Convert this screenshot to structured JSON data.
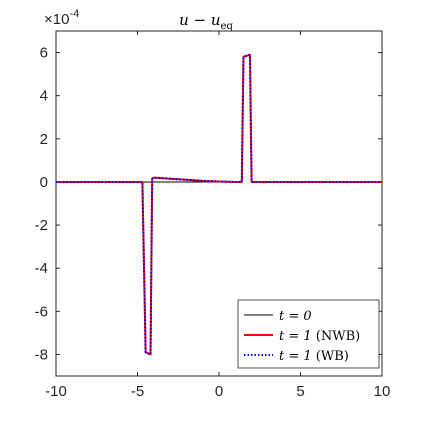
{
  "chart_data": {
    "type": "line",
    "title": "u − u_eq",
    "title_main": "u − u",
    "title_sub": "eq",
    "y_scale_label": "×10",
    "y_scale_exponent": "-4",
    "xlabel": "",
    "ylabel": "",
    "xlim": [
      -10,
      10
    ],
    "ylim": [
      -9,
      7
    ],
    "x_ticks": [
      -10,
      -5,
      0,
      5,
      10
    ],
    "x_tick_labels": [
      "-10",
      "-5",
      "0",
      "5",
      "10"
    ],
    "y_ticks": [
      -8,
      -6,
      -4,
      -2,
      0,
      2,
      4,
      6
    ],
    "y_tick_labels": [
      "-8",
      "-6",
      "-4",
      "-2",
      "0",
      "2",
      "4",
      "6"
    ],
    "grid": false,
    "legend_position": "bottom-right",
    "series": [
      {
        "name": "t = 0",
        "label_math": "t = 0",
        "color": "#000000",
        "style": "solid",
        "x": [
          -10,
          1.4,
          1.5,
          1.9,
          2.0,
          10
        ],
        "y": [
          0,
          0,
          5.8,
          5.9,
          0,
          0
        ]
      },
      {
        "name": "t = 1 (NWB)",
        "label_math": "t = 1",
        "label_suffix": " (NWB)",
        "color": "#ff0000",
        "style": "solid",
        "x": [
          -10,
          -4.7,
          -4.5,
          -4.2,
          -4.1,
          -4.0,
          -3.6,
          -3.0,
          -2.0,
          -1.0,
          0.0,
          1.0,
          1.4,
          1.5,
          1.9,
          2.0,
          2.5,
          10
        ],
        "y": [
          0,
          0,
          -7.9,
          -8.0,
          0.15,
          0.2,
          0.18,
          0.15,
          0.1,
          0.05,
          0.02,
          0,
          0,
          5.8,
          5.9,
          0,
          0,
          0
        ]
      },
      {
        "name": "t = 1 (WB)",
        "label_math": "t = 1",
        "label_suffix": " (WB)",
        "color": "#0000ff",
        "style": "dotted",
        "x": [
          -10,
          -4.7,
          -4.5,
          -4.2,
          -4.1,
          -4.0,
          -3.6,
          -3.0,
          -2.0,
          -1.0,
          0.0,
          1.0,
          1.4,
          1.5,
          1.9,
          2.0,
          2.5,
          10
        ],
        "y": [
          0,
          0,
          -7.9,
          -8.0,
          0.15,
          0.2,
          0.18,
          0.15,
          0.1,
          0.05,
          0.02,
          0,
          0,
          5.8,
          5.9,
          0,
          0,
          0
        ]
      }
    ]
  }
}
